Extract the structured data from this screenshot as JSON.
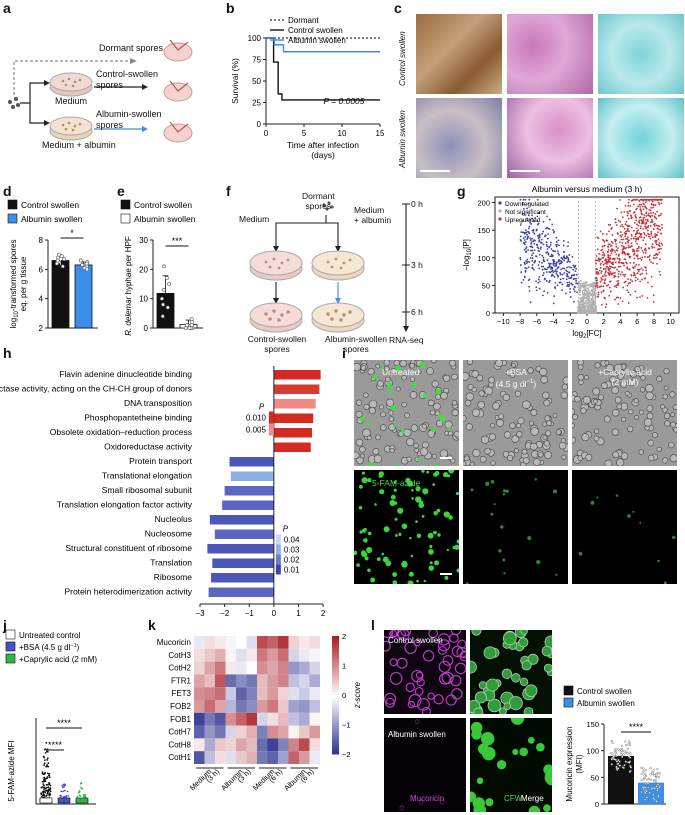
{
  "panels": {
    "a": "a",
    "b": "b",
    "c": "c",
    "d": "d",
    "e": "e",
    "f": "f",
    "g": "g",
    "h": "h",
    "i": "i",
    "j": "j",
    "k": "k",
    "l": "l"
  },
  "a": {
    "dormant": "Dormant spores",
    "control": "Control-swollen spores",
    "albumin": "Albumin-swollen spores",
    "medium": "Medium",
    "medium_albumin": "Medium + albumin"
  },
  "b": {
    "chart_data": {
      "type": "line",
      "title": "",
      "ylabel": "Survival (%)",
      "xlabel": "Time after infection (days)",
      "xlim": [
        0,
        15
      ],
      "ylim": [
        0,
        100
      ],
      "xticks": [
        0,
        5,
        10,
        15
      ],
      "yticks": [
        0,
        25,
        50,
        75,
        100
      ],
      "series": [
        {
          "name": "Dormant",
          "x": [
            0,
            15
          ],
          "y": [
            100,
            100
          ],
          "color": "#555555",
          "style": "dotted"
        },
        {
          "name": "Control swollen",
          "x": [
            0,
            1,
            1,
            1.6,
            1.6,
            2.1,
            2.1,
            15
          ],
          "y": [
            100,
            100,
            72,
            72,
            35,
            35,
            28,
            28
          ],
          "color": "#111111",
          "style": "solid"
        },
        {
          "name": "Albumin swollen",
          "x": [
            0,
            1.1,
            1.1,
            2.3,
            2.3,
            15
          ],
          "y": [
            100,
            100,
            92,
            92,
            84,
            84
          ],
          "color": "#3a8fd8",
          "style": "solid"
        }
      ],
      "annotation": "P = 0.0005"
    },
    "xlabel_line1": "Time after infection",
    "xlabel_line2": "(days)"
  },
  "c": {
    "row1": "Control swollen",
    "row2": "Albumin swollen"
  },
  "d": {
    "legend": [
      "Control swollen",
      "Albumin swollen"
    ],
    "ylabel_pre": "log",
    "ylabel_sub": "10",
    "ylabel_post": "-transformed spores",
    "ylabel2": "eq. per g tissue",
    "sig": "*",
    "chart_data": {
      "type": "bar",
      "categories": [
        "Control swollen",
        "Albumin swollen"
      ],
      "values": [
        6.6,
        6.3
      ],
      "errors": [
        0.3,
        0.2
      ],
      "ylim": [
        2,
        8
      ],
      "yticks": [
        2,
        4,
        6,
        8
      ],
      "colors": [
        "#111111",
        "#3a8fe8"
      ],
      "points": [
        [
          6.9,
          6.7,
          6.5,
          6.4,
          6.8,
          6.2,
          6.6,
          7.0
        ],
        [
          6.5,
          6.3,
          6.2,
          6.1,
          6.4,
          6.6,
          6.0,
          6.3
        ]
      ]
    }
  },
  "e": {
    "legend": [
      "Control swollen",
      "Albumin swollen"
    ],
    "ylabel_italic": "R. delemar",
    "ylabel_rest": " hyphae per HPF",
    "sig": "***",
    "chart_data": {
      "type": "bar",
      "categories": [
        "Control swollen",
        "Albumin swollen"
      ],
      "values": [
        11.8,
        1.2
      ],
      "errors": [
        6,
        1.5
      ],
      "ylim": [
        0,
        30
      ],
      "yticks": [
        0,
        10,
        20,
        30
      ],
      "colors": [
        "#111111",
        "#ffffff"
      ],
      "points": [
        [
          17,
          15,
          13,
          10,
          8,
          7,
          4,
          21
        ],
        [
          0,
          0,
          1,
          0,
          3,
          0,
          2,
          1
        ]
      ]
    }
  },
  "f": {
    "dormant": "Dormant",
    "spores": "spores",
    "medium": "Medium",
    "medium2": "Medium",
    "plus_albumin": "+ albumin",
    "t0": "0 h",
    "t3": "3 h",
    "t6": "6 h",
    "ctrl": "Control-swollen",
    "alb": "Albumin-swollen",
    "spores2": "spores",
    "spores3": "spores",
    "rnaseq": "RNA-seq"
  },
  "g": {
    "title": "Albumin versus medium (3 h)",
    "legend": [
      "Downregulated",
      "Not significant",
      "Upregulated"
    ],
    "ylabel_pre": "−log",
    "ylabel_sub": "10",
    "ylabel_post": "[P]",
    "xlabel_pre": "log",
    "xlabel_sub": "2",
    "xlabel_post": "[FC]",
    "chart_data": {
      "type": "scatter",
      "xlim": [
        -11,
        11
      ],
      "ylim": [
        0,
        210
      ],
      "xticks": [
        -10,
        -8,
        -6,
        -4,
        -2,
        0,
        2,
        4,
        6,
        8,
        10
      ],
      "yticks": [
        0,
        50,
        100,
        150,
        200
      ],
      "colors": {
        "down": "#3a3fa8",
        "ns": "#b0b0b0",
        "up": "#c0343a"
      }
    }
  },
  "h": {
    "xlabel": "NES",
    "xticks": [
      "−3",
      "−2",
      "−1",
      "0",
      "1",
      "2"
    ],
    "p_title": "P",
    "p_top": [
      "0.010",
      "0.005"
    ],
    "p_bottom": [
      "0.04",
      "0.03",
      "0.02",
      "0.01"
    ],
    "chart_data": {
      "type": "bar",
      "orientation": "horizontal",
      "categories": [
        "Flavin adenine dinucleotide binding",
        "Oxidoreductase activity, acting on the CH-CH group of donors",
        "DNA transposition",
        "Phosphopantetheine binding",
        "Obsolete oxidation–reduction process",
        "Oxidoreductase activity",
        "Protein transport",
        "Translational elongation",
        "Small ribosomal subunit",
        "Translation elongation factor activity",
        "Nucleolus",
        "Nucleosome",
        "Structural constituent of ribosome",
        "Translation",
        "Ribosome",
        "Protein heterodimerization activity"
      ],
      "values": [
        1.9,
        1.85,
        1.7,
        1.6,
        1.55,
        1.5,
        -1.8,
        -1.75,
        -2.0,
        -2.1,
        -2.6,
        -2.4,
        -2.7,
        -2.5,
        -2.55,
        -2.65
      ],
      "xlim": [
        -3,
        2.2
      ],
      "colors": [
        "#d42a22",
        "#d63b32",
        "#f08a85",
        "#d42a22",
        "#d42a22",
        "#d42a22",
        "#4a56b8",
        "#8fb0e0",
        "#5a66c0",
        "#5a66c0",
        "#4a56b8",
        "#5a66c0",
        "#4a56b8",
        "#4a56b8",
        "#4a56b8",
        "#5a66c0"
      ]
    }
  },
  "i": {
    "labels": [
      "Untreated",
      "+BSA (4.5 g dl",
      "+Caprylic acid (2 mM)",
      "5-FAM-azide"
    ],
    "bsa_sup": "−1",
    "bsa_end": ")",
    "cap1": "+Caprylic acid",
    "cap2": "(2 mM)",
    "bsa1": "+BSA",
    "bsa2": "(4.5 g dl"
  },
  "j": {
    "legend": [
      "Untreated control",
      "+BSA (4.5 g dl",
      "+Caprylic acid (2 mM)"
    ],
    "bsa_sup": "−1",
    "bsa_end": ")",
    "ylabel": "5-FAM-azide MFI",
    "sig1": "****",
    "sig2": "****",
    "colors": [
      "#ffffff",
      "#4a52c8",
      "#2fb64a"
    ]
  },
  "k": {
    "rows": [
      "Mucoricin",
      "CotH3",
      "CotH2",
      "FTR1",
      "FET3",
      "FOB2",
      "FOB1",
      "CotH7",
      "CotH8",
      "CotH1"
    ],
    "cols": [
      [
        "Medium",
        "(3 h)"
      ],
      [
        "Albumin",
        "(3 h)"
      ],
      [
        "Medium",
        "(6 h)"
      ],
      [
        "Albumin",
        "(6 h)"
      ]
    ],
    "scale_label": "z-score",
    "scale_ticks": [
      "2",
      "1",
      "0",
      "−1",
      "−2"
    ],
    "chart_data": {
      "type": "heatmap",
      "values": [
        [
          -0.2,
          0.3,
          0.2,
          -0.1,
          0.0,
          -0.3,
          1.6,
          1.4,
          1.8,
          0.4,
          0.2,
          0.3
        ],
        [
          0.3,
          0.5,
          0.7,
          0.1,
          -0.3,
          0.2,
          1.2,
          0.9,
          1.3,
          -0.4,
          -0.2,
          -0.1
        ],
        [
          0.4,
          0.8,
          1.2,
          0.2,
          -0.2,
          0.0,
          1.0,
          0.8,
          1.1,
          -1.0,
          -0.8,
          -0.4
        ],
        [
          0.8,
          0.6,
          1.5,
          -1.4,
          -1.1,
          -1.3,
          0.6,
          0.9,
          1.1,
          -0.6,
          -0.4,
          -0.8
        ],
        [
          1.0,
          1.1,
          1.3,
          -0.5,
          -1.5,
          -1.2,
          0.6,
          0.9,
          0.4,
          -0.3,
          -0.5,
          -0.2
        ],
        [
          0.9,
          1.3,
          0.8,
          -0.7,
          -1.3,
          -1.1,
          0.9,
          1.2,
          0.5,
          -0.9,
          -1.0,
          -0.6
        ],
        [
          -1.8,
          -1.3,
          -1.6,
          1.0,
          1.4,
          1.8,
          -0.4,
          0.3,
          0.6,
          -0.6,
          -0.8,
          0.1
        ],
        [
          -1.5,
          -1.0,
          -1.3,
          -0.4,
          0.4,
          0.7,
          -1.2,
          1.0,
          0.8,
          0.1,
          0.5,
          0.9
        ],
        [
          0.2,
          -0.8,
          0.5,
          0.4,
          0.8,
          0.6,
          -1.4,
          -1.8,
          -1.2,
          1.1,
          1.6,
          0.3
        ],
        [
          -1.6,
          -0.6,
          0.3,
          -0.3,
          0.5,
          0.7,
          -1.3,
          -1.5,
          -0.9,
          1.4,
          0.9,
          -0.2
        ]
      ],
      "zlim": [
        -2,
        2
      ]
    }
  },
  "l": {
    "row1": "Control swollen",
    "row2": "Albumin swollen",
    "stain1": "Mucoricin",
    "stain2": "CFW",
    "stain3": "Merge",
    "legend": [
      "Control swollen",
      "Albumin swollen"
    ],
    "ylabel1": "Mucoricin expression",
    "ylabel2": "(MFI)",
    "sig": "****",
    "chart_data": {
      "type": "bar",
      "categories": [
        "Control swollen",
        "Albumin swollen"
      ],
      "values": [
        90,
        40
      ],
      "ylim": [
        0,
        150
      ],
      "yticks": [
        0,
        50,
        100,
        150
      ],
      "colors": [
        "#111111",
        "#3a8fe8"
      ]
    }
  }
}
